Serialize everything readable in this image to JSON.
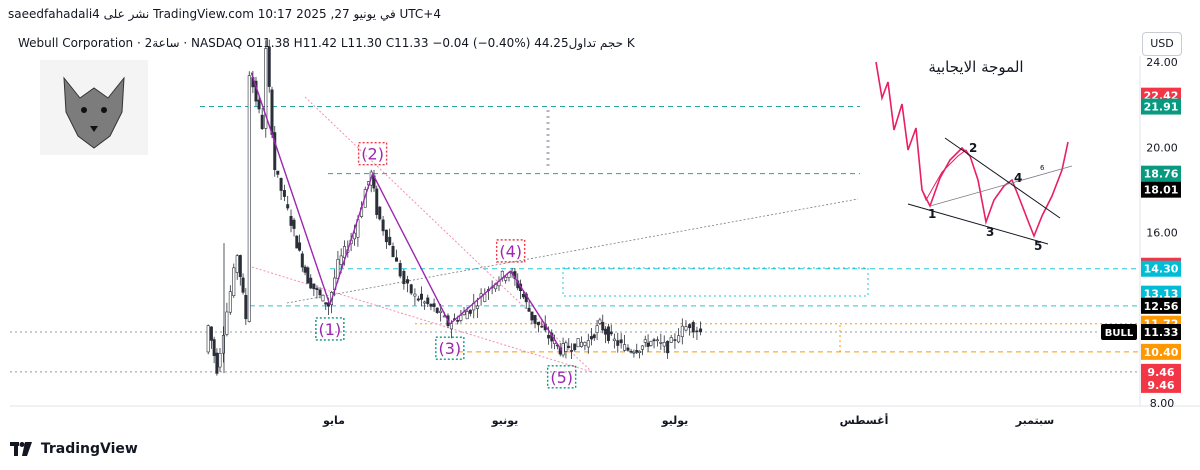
{
  "header": {
    "published": "saeedfahadali4 نشر على TradingView.com في يونيو 27, 2025 10:17 UTC+4",
    "ticker_line": "Webull Corporation · 2ساعة · NASDAQ  O11.38  H11.42  L11.30  C11.33  −0.04 (−0.40%)  حجم تداول44.25 K",
    "currency": "USD"
  },
  "footer": {
    "brand": "TradingView"
  },
  "colors": {
    "up": "#26a69a",
    "down": "#ef5350",
    "wave": "#9c27b0",
    "teal_line": "#26a69a",
    "orange_line": "#ff9800",
    "cyan_line": "#26c6da",
    "red_badge": "#f23645",
    "green_badge": "#089981",
    "blue_badge": "#00bcd4",
    "orange_badge": "#ff9800",
    "black_badge": "#000000"
  },
  "chart_data": {
    "type": "candlestick",
    "symbol": "Webull Corporation",
    "exchange": "NASDAQ",
    "interval": "2ساعة",
    "ohlc": {
      "open": 11.38,
      "high": 11.42,
      "low": 11.3,
      "close": 11.33,
      "change": -0.04,
      "change_pct": -0.4
    },
    "volume": "44.25 K",
    "y_axis": {
      "ticks": [
        24.0,
        20.0,
        18.01,
        16.0,
        12.56,
        8.0
      ],
      "range": [
        8,
        24.8
      ]
    },
    "x_axis": {
      "labels": [
        "مايو",
        "يونيو",
        "يوليو",
        "أغسطس",
        "سبتمبر"
      ]
    },
    "price_path": [
      [
        "mar-28",
        10.4
      ],
      [
        "apr-01",
        11.6
      ],
      [
        "apr-03",
        9.6
      ],
      [
        "apr-08",
        15.0
      ],
      [
        "apr-10",
        12.0
      ],
      [
        "apr-11",
        23.5
      ],
      [
        "apr-14",
        21.0
      ],
      [
        "apr-15",
        24.5
      ],
      [
        "apr-17",
        19.0
      ],
      [
        "apr-21",
        16.5
      ],
      [
        "apr-23",
        15.0
      ],
      [
        "apr-25",
        13.8
      ],
      [
        "apr-28",
        13.0
      ],
      [
        "apr-30",
        12.6
      ],
      [
        "may-02",
        14.5
      ],
      [
        "may-05",
        16.0
      ],
      [
        "may-07",
        18.0
      ],
      [
        "may-08",
        18.76
      ],
      [
        "may-09",
        17.0
      ],
      [
        "may-12",
        15.0
      ],
      [
        "may-14",
        13.6
      ],
      [
        "may-16",
        13.0
      ],
      [
        "may-20",
        12.3
      ],
      [
        "may-22",
        11.7
      ],
      [
        "may-26",
        12.4
      ],
      [
        "may-28",
        13.0
      ],
      [
        "may-30",
        13.6
      ],
      [
        "jun-02",
        14.2
      ],
      [
        "jun-04",
        13.3
      ],
      [
        "jun-06",
        12.0
      ],
      [
        "jun-09",
        11.1
      ],
      [
        "jun-11",
        10.5
      ],
      [
        "jun-13",
        10.7
      ],
      [
        "jun-16",
        10.9
      ],
      [
        "jun-18",
        11.7
      ],
      [
        "jun-20",
        11.0
      ],
      [
        "jun-23",
        10.5
      ],
      [
        "jun-25",
        10.6
      ],
      [
        "jun-27",
        10.9
      ],
      [
        "jun-30",
        10.6
      ],
      [
        "jul-02",
        11.3
      ],
      [
        "jul-04",
        11.7
      ],
      [
        "jul-06",
        11.33
      ]
    ],
    "wave_labels": [
      {
        "label": "(1)",
        "date": "apr-30",
        "price": 12.6
      },
      {
        "label": "(2)",
        "date": "may-08",
        "price": 18.76
      },
      {
        "label": "(3)",
        "date": "may-22",
        "price": 11.7
      },
      {
        "label": "(4)",
        "date": "jun-02",
        "price": 14.2
      },
      {
        "label": "(5)",
        "date": "jun-11",
        "price": 10.45
      }
    ],
    "horizontal_levels": [
      {
        "price": 21.91,
        "color": "teal",
        "style": "dashed"
      },
      {
        "price": 18.76,
        "color": "teal",
        "style": "dashed"
      },
      {
        "price": 14.3,
        "color": "cyan",
        "style": "dashed"
      },
      {
        "price": 12.56,
        "color": "cyan",
        "style": "dashed"
      },
      {
        "price": 11.72,
        "color": "orange",
        "style": "dotted"
      },
      {
        "price": 10.4,
        "color": "orange",
        "style": "dashed"
      },
      {
        "price": 11.33,
        "color": "gray",
        "style": "dotted"
      },
      {
        "price": 9.46,
        "color": "gray",
        "style": "dotted"
      }
    ],
    "price_badges": [
      {
        "text": "22.42",
        "price": 22.42,
        "color": "red"
      },
      {
        "text": "21.91",
        "price": 21.91,
        "color": "green"
      },
      {
        "text": "18.76",
        "price": 18.76,
        "color": "green"
      },
      {
        "text": "18.01",
        "price": 18.01,
        "color": "black"
      },
      {
        "text": "14.44",
        "price": 14.44,
        "color": "red"
      },
      {
        "text": "14.30",
        "price": 14.3,
        "color": "blue"
      },
      {
        "text": "13.13",
        "price": 13.13,
        "color": "blue"
      },
      {
        "text": "12.56",
        "price": 12.56,
        "color": "black"
      },
      {
        "text": "11.72",
        "price": 11.72,
        "color": "orange"
      },
      {
        "text": "11.33",
        "price": 11.33,
        "color": "black"
      },
      {
        "text": "10.40",
        "price": 10.4,
        "color": "orange"
      },
      {
        "text": "9.46",
        "price": 9.46,
        "color": "red"
      },
      {
        "text": "9.46",
        "price": 8.85,
        "color": "red"
      }
    ],
    "bull_label": "BULL",
    "inset": {
      "title": "الموجة الايجابية",
      "points": [
        "1",
        "2",
        "3",
        "4",
        "5"
      ],
      "note": "6"
    }
  }
}
